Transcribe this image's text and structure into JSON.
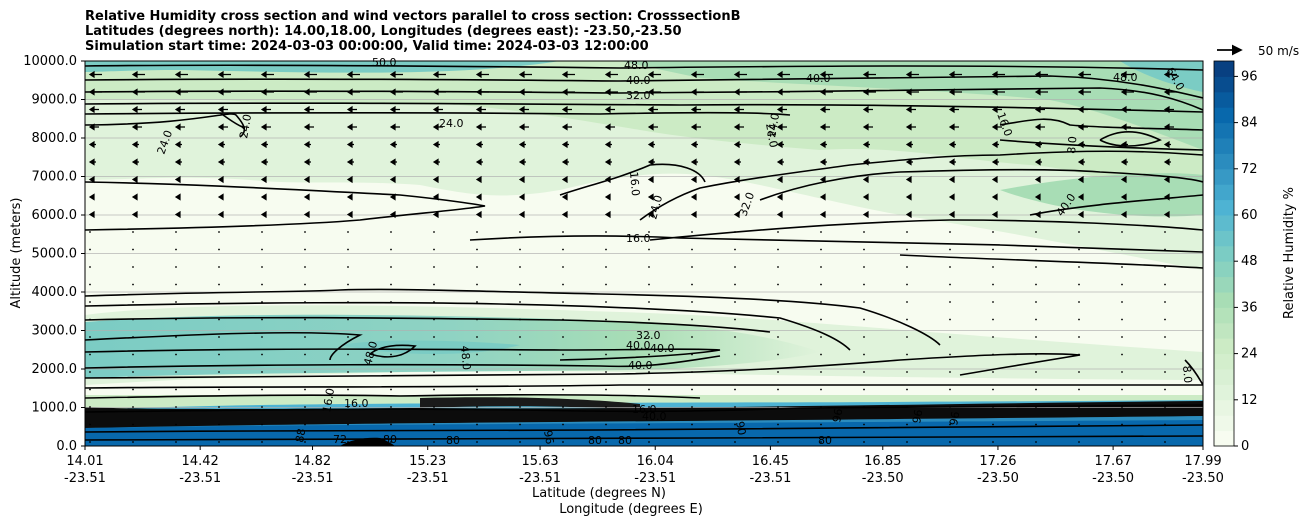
{
  "title_lines": [
    "Relative Humidity cross section and wind vectors parallel to cross section: CrosssectionB",
    "Latitudes (degrees north): 14.00,18.00, Longitudes (degrees east): -23.50,-23.50",
    "Simulation start time: 2024-03-03 00:00:00, Valid time: 2024-03-03 12:00:00"
  ],
  "chart_data": {
    "type": "heatmap",
    "ylabel": "Altitude (meters)",
    "xlabel_lines": [
      "Latitude (degrees N)",
      "Longitude (degrees E)"
    ],
    "y_ticks": [
      "0.0",
      "1000.0",
      "2000.0",
      "3000.0",
      "4000.0",
      "5000.0",
      "6000.0",
      "7000.0",
      "8000.0",
      "9000.0",
      "10000.0"
    ],
    "ylim": [
      0,
      10000
    ],
    "x_ticks_lat": [
      "14.01",
      "14.42",
      "14.82",
      "15.23",
      "15.63",
      "16.04",
      "16.45",
      "16.85",
      "17.26",
      "17.67",
      "17.99"
    ],
    "x_ticks_lon": [
      "-23.51",
      "-23.51",
      "-23.51",
      "-23.51",
      "-23.51",
      "-23.51",
      "-23.51",
      "-23.50",
      "-23.50",
      "-23.50",
      "-23.50"
    ],
    "colorbar_label": "Relative Humidity %",
    "colorbar_ticks": [
      "0",
      "12",
      "24",
      "36",
      "48",
      "60",
      "72",
      "84",
      "96"
    ],
    "colorbar_range": [
      0,
      100
    ],
    "quiver_key_label": "50 m/s",
    "grid": "horizontal",
    "contour_labels": [
      "50.0",
      "48.0",
      "40.0",
      "48.0",
      "40.0",
      "32.0",
      "64.0",
      "24.0",
      "24.0",
      "24.0",
      "24.0",
      "24.0",
      "16.0",
      "8.0",
      "16.0",
      "24.0",
      "32.0",
      "16.0",
      "40.0",
      "32.0",
      "40.0",
      "40.0",
      "40.0",
      "48.0",
      "48.0",
      "16.0",
      "16.0",
      "16.0",
      "40.0",
      "8.0",
      "88",
      "72",
      "80",
      "80",
      "80",
      "96",
      "80",
      "90",
      "96",
      "80",
      "96",
      "96"
    ]
  },
  "colors": {
    "colormap": [
      "#f7fcf0",
      "#e0f3db",
      "#ccebc5",
      "#a8ddb5",
      "#7bccc4",
      "#4eb3d3",
      "#2b8cbe",
      "#0868ac",
      "#084081"
    ]
  }
}
